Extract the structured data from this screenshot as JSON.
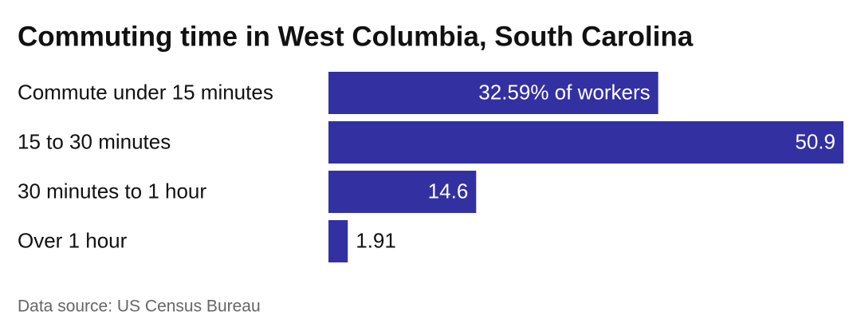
{
  "chart_data": {
    "type": "bar",
    "orientation": "horizontal",
    "title": "Commuting time in West Columbia, South Carolina",
    "categories": [
      "Commute under 15 minutes",
      "15 to 30 minutes",
      "30 minutes to 1 hour",
      "Over 1 hour"
    ],
    "values": [
      32.59,
      50.9,
      14.6,
      1.91
    ],
    "value_labels": [
      "32.59% of workers",
      "50.9",
      "14.6",
      "1.91"
    ],
    "color": "#3330a2",
    "source": "Data source: US Census Bureau"
  }
}
